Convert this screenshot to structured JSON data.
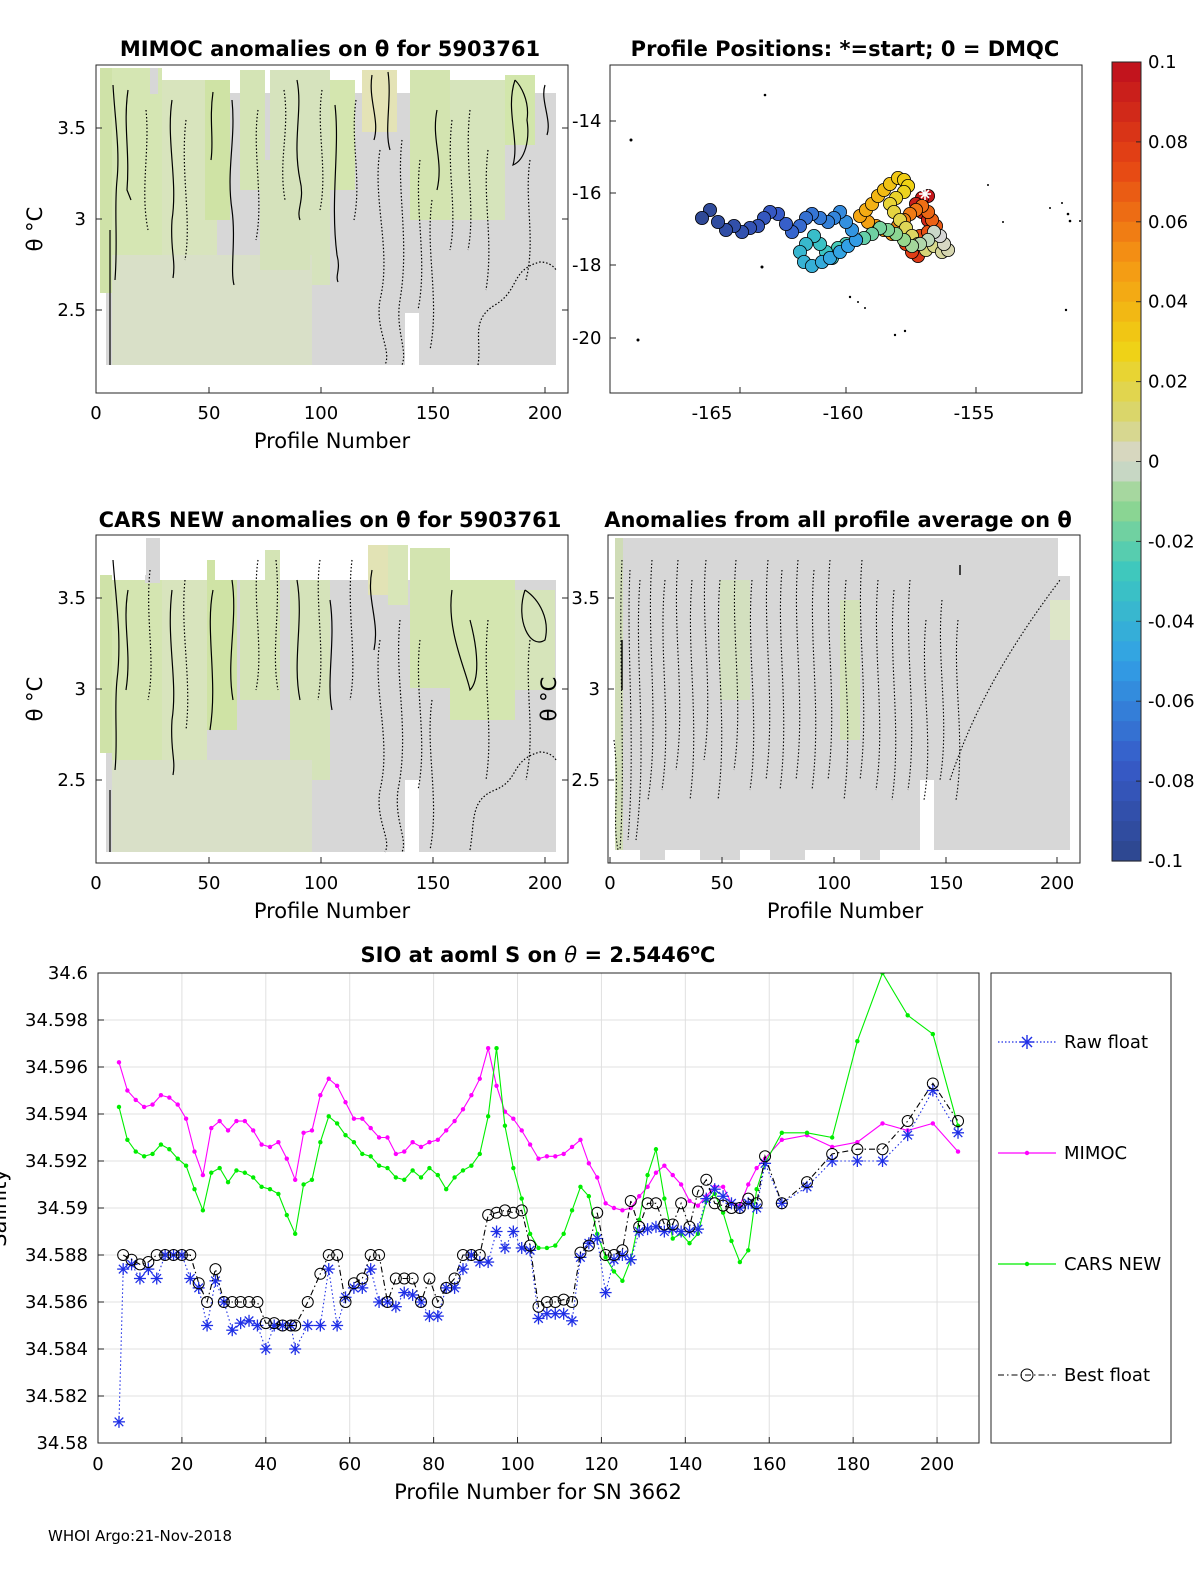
{
  "footer": "WHOI Argo:21-Nov-2018",
  "colors": {
    "mimoc": "#ff00ff",
    "cars": "#00ee00",
    "raw": "#1f2fe6",
    "best": "#000000",
    "grid": "#e0e0e0",
    "fill_gray": "#d7d7d7",
    "fill_green": "#d3e4b0"
  },
  "panels": {
    "p1": {
      "title": "MIMOC anomalies on θ  for 5903761",
      "xlabel": "Profile Number",
      "ylabel": "θ °C",
      "xticks": [
        "0",
        "50",
        "100",
        "150",
        "200"
      ],
      "yticks": [
        "3.5",
        "3",
        "2.5"
      ]
    },
    "p2": {
      "title": "Profile Positions: *=start; 0 = DMQC",
      "xticks": [
        "-165",
        "-160",
        "-155"
      ],
      "yticks": [
        "-14",
        "-16",
        "-18",
        "-20"
      ]
    },
    "p3": {
      "title": "CARS NEW anomalies on θ for 5903761",
      "xlabel": "Profile Number",
      "ylabel": "θ °C",
      "xticks": [
        "0",
        "50",
        "100",
        "150",
        "200"
      ],
      "yticks": [
        "3.5",
        "3",
        "2.5"
      ]
    },
    "p4": {
      "title": "Anomalies from all profile average on θ",
      "xlabel": "Profile Number",
      "ylabel": "θ °C",
      "xticks": [
        "0",
        "50",
        "100",
        "150",
        "200"
      ],
      "yticks": [
        "3.5",
        "3",
        "2.5"
      ]
    }
  },
  "colorbar": {
    "ticks": [
      "0.1",
      "0.08",
      "0.06",
      "0.04",
      "0.02",
      "0",
      "-0.02",
      "-0.04",
      "-0.06",
      "-0.08",
      "-0.1"
    ]
  },
  "chart_data": {
    "type": "line",
    "title": "SIO at aoml S on θ = 2.5446°C",
    "title_prefix": "SIO at aoml S on ",
    "title_theta": "θ",
    "title_value": " = 2.5446",
    "title_unit_sup": "o",
    "title_unit": "C",
    "xlabel": "Profile Number for SN 3662",
    "ylabel": "Salinity",
    "xlim": [
      0,
      210
    ],
    "ylim": [
      34.58,
      34.6
    ],
    "xticks": [
      "0",
      "20",
      "40",
      "60",
      "80",
      "100",
      "120",
      "140",
      "160",
      "180",
      "200"
    ],
    "yticks": [
      "34.58",
      "34.582",
      "34.584",
      "34.586",
      "34.588",
      "34.59",
      "34.592",
      "34.594",
      "34.596",
      "34.598",
      "34.6"
    ],
    "legend": [
      "Raw float",
      "MIMOC",
      "CARS NEW",
      "Best float"
    ],
    "series": [
      {
        "name": "MIMOC",
        "x": [
          5,
          7,
          9,
          11,
          13,
          15,
          17,
          19,
          21,
          23,
          25,
          27,
          29,
          31,
          33,
          35,
          37,
          39,
          41,
          43,
          45,
          47,
          49,
          51,
          53,
          55,
          57,
          59,
          61,
          63,
          65,
          67,
          69,
          71,
          73,
          75,
          77,
          79,
          81,
          83,
          85,
          87,
          89,
          91,
          93,
          95,
          97,
          99,
          101,
          103,
          105,
          107,
          109,
          111,
          113,
          115,
          117,
          119,
          121,
          123,
          125,
          127,
          129,
          131,
          133,
          135,
          137,
          139,
          141,
          143,
          145,
          147,
          149,
          151,
          153,
          155,
          157,
          159,
          163,
          169,
          175,
          181,
          187,
          193,
          199,
          205
        ],
        "y": [
          34.5962,
          34.595,
          34.5946,
          34.5943,
          34.5944,
          34.5948,
          34.5947,
          34.5944,
          34.5938,
          34.5924,
          34.5914,
          34.5934,
          34.5937,
          34.5933,
          34.5937,
          34.5937,
          34.5933,
          34.5927,
          34.5926,
          34.5928,
          34.5921,
          34.5912,
          34.5932,
          34.5933,
          34.5948,
          34.5955,
          34.5952,
          34.5945,
          34.5938,
          34.5938,
          34.5934,
          34.593,
          34.593,
          34.5923,
          34.5924,
          34.5928,
          34.5926,
          34.5928,
          34.5929,
          34.5933,
          34.5937,
          34.5942,
          34.5948,
          34.5955,
          34.5968,
          34.5952,
          34.5941,
          34.5938,
          34.5933,
          34.5927,
          34.5921,
          34.5922,
          34.5922,
          34.5923,
          34.5926,
          34.5929,
          34.5919,
          34.5913,
          34.5902,
          34.59,
          34.5899,
          34.59,
          34.5905,
          34.5909,
          34.5915,
          34.5918,
          34.5914,
          34.591,
          34.5903,
          34.5901,
          34.5905,
          34.5909,
          34.5909,
          34.5902,
          34.5901,
          34.591,
          34.5917,
          34.5921,
          34.5929,
          34.5931,
          34.5926,
          34.5928,
          34.5936,
          34.5933,
          34.5936,
          34.5924
        ]
      },
      {
        "name": "CARS NEW",
        "x": [
          5,
          7,
          9,
          11,
          13,
          15,
          17,
          19,
          21,
          23,
          25,
          27,
          29,
          31,
          33,
          35,
          37,
          39,
          41,
          43,
          45,
          47,
          49,
          51,
          53,
          55,
          57,
          59,
          61,
          63,
          65,
          67,
          69,
          71,
          73,
          75,
          77,
          79,
          81,
          83,
          85,
          87,
          89,
          91,
          93,
          95,
          97,
          99,
          101,
          103,
          105,
          107,
          109,
          111,
          113,
          115,
          117,
          119,
          121,
          123,
          125,
          127,
          129,
          131,
          133,
          135,
          137,
          139,
          141,
          143,
          145,
          147,
          149,
          151,
          153,
          155,
          157,
          159,
          163,
          169,
          175,
          181,
          187,
          193,
          199,
          205
        ],
        "y": [
          34.5943,
          34.5929,
          34.5924,
          34.5922,
          34.5923,
          34.5927,
          34.5925,
          34.5921,
          34.5918,
          34.5908,
          34.5899,
          34.5915,
          34.5917,
          34.5911,
          34.5916,
          34.5915,
          34.5913,
          34.5909,
          34.5908,
          34.5906,
          34.5897,
          34.5889,
          34.591,
          34.5912,
          34.5928,
          34.5939,
          34.5936,
          34.5931,
          34.5928,
          34.5923,
          34.5922,
          34.5918,
          34.5917,
          34.5913,
          34.5912,
          34.5916,
          34.5913,
          34.5917,
          34.5914,
          34.5908,
          34.5913,
          34.5916,
          34.5918,
          34.5923,
          34.5939,
          34.5968,
          34.5935,
          34.5917,
          34.5904,
          34.5889,
          34.5883,
          34.5883,
          34.5884,
          34.5889,
          34.5899,
          34.5909,
          34.5905,
          34.5889,
          34.5879,
          34.5873,
          34.5869,
          34.5878,
          34.5895,
          34.5914,
          34.5925,
          34.5904,
          34.5887,
          34.5889,
          34.5885,
          34.5889,
          34.5903,
          34.5906,
          34.5898,
          34.5886,
          34.5877,
          34.5882,
          34.5908,
          34.5919,
          34.5932,
          34.5932,
          34.593,
          34.5971,
          34.6,
          34.5982,
          34.5974,
          34.5935
        ]
      },
      {
        "name": "Raw float",
        "x": [
          5,
          6,
          8,
          10,
          12,
          14,
          16,
          18,
          20,
          22,
          24,
          26,
          28,
          30,
          32,
          34,
          36,
          38,
          40,
          42,
          44,
          46,
          47,
          50,
          53,
          55,
          57,
          59,
          61,
          63,
          65,
          67,
          69,
          71,
          73,
          75,
          77,
          79,
          81,
          83,
          85,
          87,
          89,
          91,
          93,
          95,
          97,
          99,
          101,
          103,
          105,
          107,
          109,
          111,
          113,
          115,
          117,
          119,
          121,
          123,
          125,
          127,
          129,
          131,
          133,
          135,
          137,
          139,
          141,
          143,
          145,
          147,
          149,
          151,
          153,
          155,
          157,
          159,
          163,
          169,
          175,
          181,
          187,
          193,
          199,
          205
        ],
        "y": [
          34.5809,
          34.5874,
          34.5876,
          34.587,
          34.5874,
          34.587,
          34.588,
          34.588,
          34.588,
          34.587,
          34.5866,
          34.585,
          34.5869,
          34.586,
          34.5848,
          34.5851,
          34.5852,
          34.585,
          34.584,
          34.585,
          34.585,
          34.585,
          34.584,
          34.585,
          34.585,
          34.5874,
          34.585,
          34.5862,
          34.5866,
          34.5866,
          34.5874,
          34.586,
          34.586,
          34.5858,
          34.5864,
          34.5863,
          34.586,
          34.5854,
          34.5854,
          34.5866,
          34.5866,
          34.5874,
          34.588,
          34.5877,
          34.5877,
          34.589,
          34.5883,
          34.589,
          34.5883,
          34.5882,
          34.5853,
          34.5855,
          34.5855,
          34.5855,
          34.5852,
          34.5879,
          34.5885,
          34.5887,
          34.5864,
          34.5878,
          34.588,
          34.5878,
          34.589,
          34.5891,
          34.5892,
          34.589,
          34.5891,
          34.589,
          34.589,
          34.5891,
          34.5904,
          34.5908,
          34.5905,
          34.5902,
          34.59,
          34.5902,
          34.59,
          34.5919,
          34.5902,
          34.5909,
          34.592,
          34.592,
          34.592,
          34.5931,
          34.595,
          34.5932
        ]
      },
      {
        "name": "Best float",
        "x": [
          6,
          8,
          10,
          12,
          14,
          16,
          18,
          20,
          22,
          24,
          26,
          28,
          30,
          32,
          34,
          36,
          38,
          40,
          42,
          44,
          46,
          47,
          50,
          53,
          55,
          57,
          59,
          61,
          63,
          65,
          67,
          69,
          71,
          73,
          75,
          77,
          79,
          81,
          83,
          85,
          87,
          89,
          91,
          93,
          95,
          97,
          99,
          101,
          103,
          105,
          107,
          109,
          111,
          113,
          115,
          117,
          119,
          121,
          123,
          125,
          127,
          129,
          131,
          133,
          135,
          137,
          139,
          141,
          143,
          145,
          147,
          149,
          151,
          153,
          155,
          157,
          159,
          163,
          169,
          175,
          181,
          187,
          193,
          199,
          205
        ],
        "y": [
          34.588,
          34.5878,
          34.5876,
          34.5877,
          34.588,
          34.588,
          34.588,
          34.588,
          34.588,
          34.5868,
          34.586,
          34.5874,
          34.586,
          34.586,
          34.586,
          34.586,
          34.586,
          34.5851,
          34.5851,
          34.585,
          34.585,
          34.585,
          34.586,
          34.5872,
          34.588,
          34.588,
          34.586,
          34.5868,
          34.587,
          34.588,
          34.588,
          34.586,
          34.587,
          34.587,
          34.587,
          34.586,
          34.587,
          34.586,
          34.5866,
          34.587,
          34.588,
          34.588,
          34.588,
          34.5897,
          34.5898,
          34.5899,
          34.5898,
          34.5899,
          34.5884,
          34.5858,
          34.586,
          34.586,
          34.5861,
          34.586,
          34.5881,
          34.5884,
          34.5898,
          34.588,
          34.588,
          34.5882,
          34.5903,
          34.5892,
          34.5902,
          34.5902,
          34.5893,
          34.5893,
          34.5902,
          34.5892,
          34.5907,
          34.5912,
          34.5902,
          34.5901,
          34.59,
          34.59,
          34.5904,
          34.5902,
          34.5922,
          34.5902,
          34.5911,
          34.5923,
          34.5925,
          34.5925,
          34.5937,
          34.5953,
          34.5937
        ]
      }
    ]
  }
}
